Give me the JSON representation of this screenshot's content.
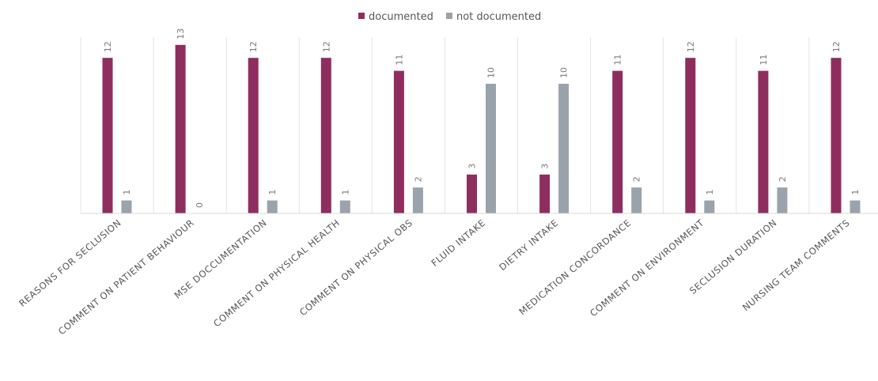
{
  "chart_data": {
    "type": "bar",
    "title": "",
    "xlabel": "",
    "ylabel": "",
    "ylim": [
      0,
      13.6
    ],
    "grid": false,
    "legend": "top-center",
    "categories": [
      "REASONS FOR SECLUSION",
      "COMMENT ON PATIENT BEHAVIOUR",
      "MSE DOCCUMENTATION",
      "COMMENT ON PHYSICAL HEALTH",
      "COMMENT ON PHYSICAL OBS",
      "FLUID INTAKE",
      "DIETRY INTAKE",
      "MEDICATION CONCORDANCE",
      "COMMENT ON ENVIRONMENT",
      "SECLUSION DURATION",
      "NURSING TEAM COMMENTS"
    ],
    "series": [
      {
        "name": "documented",
        "color": "#8e2e5e",
        "values": [
          12,
          13,
          12,
          12,
          11,
          3,
          3,
          11,
          12,
          11,
          12
        ]
      },
      {
        "name": "not documented",
        "color": "#9aa3ab",
        "values": [
          1,
          0,
          1,
          1,
          2,
          10,
          10,
          2,
          1,
          2,
          1
        ]
      }
    ]
  }
}
